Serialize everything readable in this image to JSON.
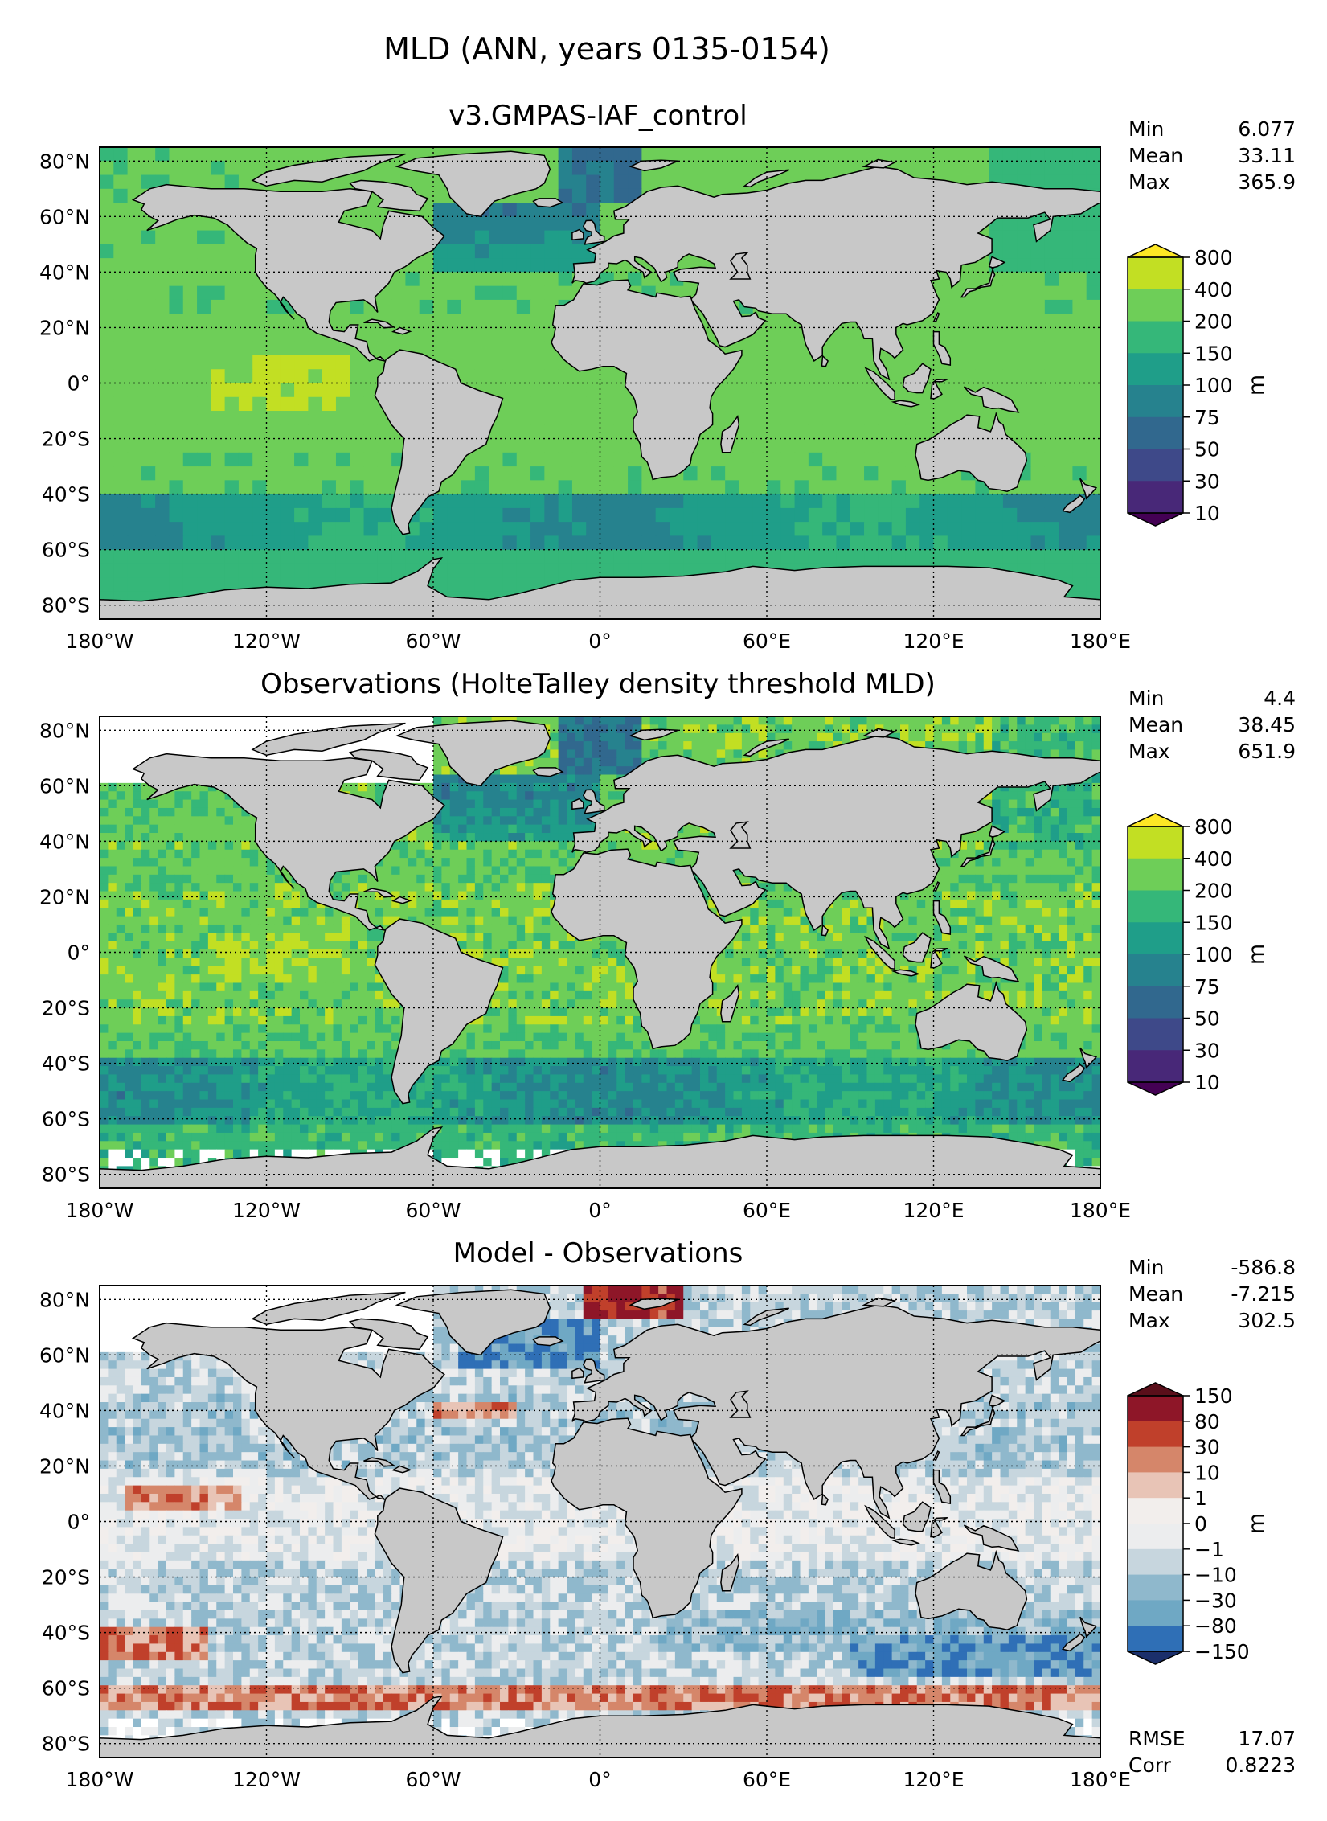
{
  "figure": {
    "title": "MLD (ANN, years 0135-0154)"
  },
  "axes": {
    "lat_ticks": [
      "80°N",
      "60°N",
      "40°N",
      "20°N",
      "0°",
      "20°S",
      "40°S",
      "60°S",
      "80°S"
    ],
    "lon_ticks": [
      "180°W",
      "120°W",
      "60°W",
      "0°",
      "60°E",
      "120°E",
      "180°E"
    ]
  },
  "panels": [
    {
      "title": "v3.GMPAS-IAF_control",
      "stats": [
        {
          "label": "Min",
          "value": "6.077"
        },
        {
          "label": "Mean",
          "value": "33.11"
        },
        {
          "label": "Max",
          "value": "365.9"
        }
      ],
      "colorbar": {
        "unit": "m",
        "ticks": [
          "800",
          "400",
          "200",
          "150",
          "100",
          "75",
          "50",
          "30",
          "10"
        ],
        "colors": [
          "#c2df23",
          "#6ece58",
          "#35b779",
          "#1f9e89",
          "#26828e",
          "#31688e",
          "#3e4989",
          "#482878"
        ],
        "over": "#fde725",
        "under": "#440154"
      }
    },
    {
      "title": "Observations (HolteTalley density threshold MLD)",
      "stats": [
        {
          "label": "Min",
          "value": "4.4"
        },
        {
          "label": "Mean",
          "value": "38.45"
        },
        {
          "label": "Max",
          "value": "651.9"
        }
      ],
      "colorbar": {
        "unit": "m",
        "ticks": [
          "800",
          "400",
          "200",
          "150",
          "100",
          "75",
          "50",
          "30",
          "10"
        ],
        "colors": [
          "#c2df23",
          "#6ece58",
          "#35b779",
          "#1f9e89",
          "#26828e",
          "#31688e",
          "#3e4989",
          "#482878"
        ],
        "over": "#fde725",
        "under": "#440154"
      }
    },
    {
      "title": "Model - Observations",
      "stats": [
        {
          "label": "Min",
          "value": "-586.8"
        },
        {
          "label": "Mean",
          "value": "-7.215"
        },
        {
          "label": "Max",
          "value": "302.5"
        }
      ],
      "extra_stats": [
        {
          "label": "RMSE",
          "value": "17.07"
        },
        {
          "label": "Corr",
          "value": "0.8223"
        }
      ],
      "colorbar": {
        "unit": "m",
        "ticks": [
          "150",
          "80",
          "30",
          "10",
          "1",
          "0",
          "−1",
          "−10",
          "−30",
          "−80",
          "−150"
        ],
        "colors": [
          "#8e1628",
          "#c0402b",
          "#d5866a",
          "#e8c4b6",
          "#f2eeec",
          "#ecedee",
          "#c7d6de",
          "#8fb8cc",
          "#6fa8c4",
          "#2f6fb6"
        ],
        "over": "#5a0f1a",
        "under": "#1b2f6b"
      }
    }
  ],
  "map_colors": {
    "land": "#c8c8c8",
    "missing": "#ffffff",
    "coast": "#000000"
  }
}
